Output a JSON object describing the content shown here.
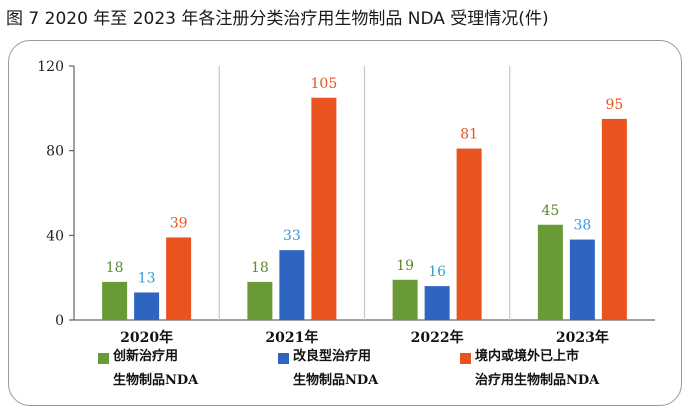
{
  "figure_title": "图 7   2020 年至 2023 年各注册分类治疗用生物制品 NDA 受理情况(件)",
  "colors": {
    "green": "#6a9a35",
    "blue": "#2e65c0",
    "orange": "#e8531f",
    "grid": "#c8c8c8",
    "axis": "#444444"
  },
  "chart_data": {
    "type": "bar",
    "categories": [
      "2020年",
      "2021年",
      "2022年",
      "2023年"
    ],
    "series": [
      {
        "name_line1": "创新治疗用",
        "name_line2": "生物制品NDA",
        "color": "#6a9a35",
        "label_color": "#5b8a2a",
        "values": [
          18,
          18,
          19,
          45
        ]
      },
      {
        "name_line1": "改良型治疗用",
        "name_line2": "生物制品NDA",
        "color": "#2e65c0",
        "label_color": "#3a9ad6",
        "values": [
          13,
          33,
          16,
          38
        ]
      },
      {
        "name_line1": "境内或境外已上市",
        "name_line2": "治疗用生物制品NDA",
        "color": "#e8531f",
        "label_color": "#e8531f",
        "values": [
          39,
          105,
          81,
          95
        ]
      }
    ],
    "yticks": [
      0,
      40,
      80,
      120
    ],
    "ylim": [
      0,
      120
    ],
    "grid": "vertical separators between years",
    "legend_position": "bottom"
  }
}
